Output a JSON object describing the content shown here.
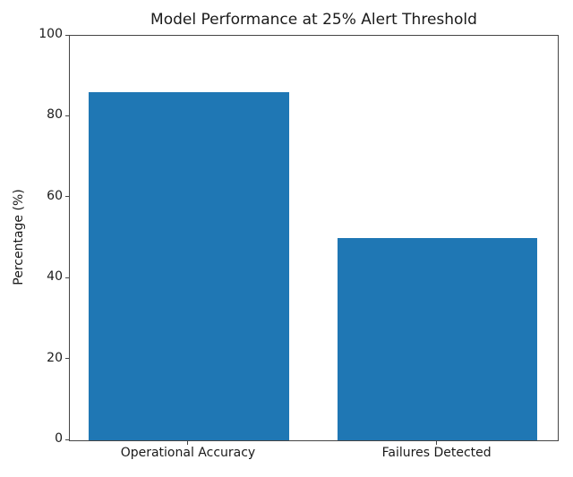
{
  "chart_data": {
    "type": "bar",
    "title": "Model Performance at 25% Alert Threshold",
    "categories": [
      "Operational Accuracy",
      "Failures Detected"
    ],
    "values": [
      86,
      50
    ],
    "xlabel": "",
    "ylabel": "Percentage (%)",
    "ylim": [
      0,
      100
    ],
    "yticks": [
      0,
      20,
      40,
      60,
      80,
      100
    ],
    "bar_color": "#1f77b4",
    "grid": false,
    "legend_position": "none",
    "background_color": "#ffffff"
  }
}
